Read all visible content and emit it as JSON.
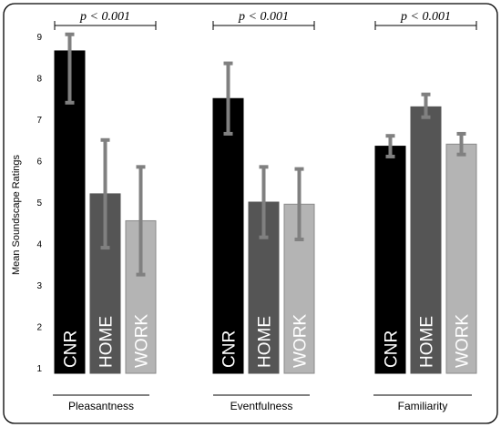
{
  "chart_data": {
    "type": "bar",
    "ylabel": "Mean Soundscape Ratings",
    "ylim": [
      1,
      9
    ],
    "yticks": [
      "1",
      "2",
      "3",
      "4",
      "5",
      "6",
      "7",
      "8",
      "9"
    ],
    "grid": false,
    "groups": [
      {
        "name": "Pleasantness",
        "significance": "p < 0.001",
        "bars": [
          {
            "label": "CNR",
            "value": 8.65,
            "err_low": 7.4,
            "err_high": 9.05,
            "color": "#000000"
          },
          {
            "label": "HOME",
            "value": 5.2,
            "err_low": 3.9,
            "err_high": 6.5,
            "color": "#555555"
          },
          {
            "label": "WORK",
            "value": 4.55,
            "err_low": 3.25,
            "err_high": 5.85,
            "color": "#b4b4b4"
          }
        ]
      },
      {
        "name": "Eventfulness",
        "significance": "p < 0.001",
        "bars": [
          {
            "label": "CNR",
            "value": 7.5,
            "err_low": 6.65,
            "err_high": 8.35,
            "color": "#000000"
          },
          {
            "label": "HOME",
            "value": 5.0,
            "err_low": 4.15,
            "err_high": 5.85,
            "color": "#555555"
          },
          {
            "label": "WORK",
            "value": 4.95,
            "err_low": 4.1,
            "err_high": 5.8,
            "color": "#b4b4b4"
          }
        ]
      },
      {
        "name": "Familiarity",
        "significance": "p < 0.001",
        "bars": [
          {
            "label": "CNR",
            "value": 6.35,
            "err_low": 6.1,
            "err_high": 6.6,
            "color": "#000000"
          },
          {
            "label": "HOME",
            "value": 7.3,
            "err_low": 7.05,
            "err_high": 7.6,
            "color": "#555555"
          },
          {
            "label": "WORK",
            "value": 6.4,
            "err_low": 6.15,
            "err_high": 6.65,
            "color": "#b4b4b4"
          }
        ]
      }
    ]
  }
}
